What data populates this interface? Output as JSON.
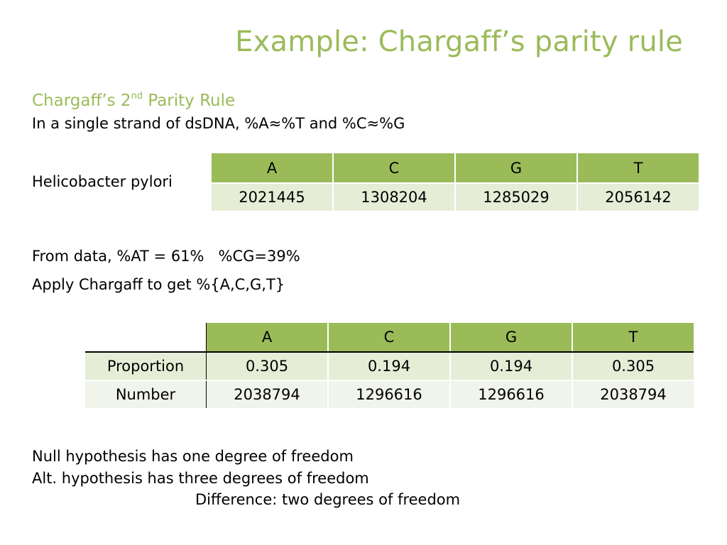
{
  "slide": {
    "title": "Example: Chargaff’s parity rule",
    "subhead_pre": "Chargaff’s 2",
    "subhead_sup": "nd",
    "subhead_post": " Parity Rule",
    "rule_text": "In a single strand of dsDNA, %A≈%T and %C≈%G",
    "organism": "Helicobacter pylori",
    "from_data": "From data, %AT = 61%   %CG=39%",
    "apply": "Apply Chargaff to get %{A,C,G,T}",
    "null_h": "Null hypothesis has one degree of freedom",
    "alt_h": "Alt. hypothesis has three degrees of freedom",
    "difference": "Difference: two degrees of freedom"
  },
  "counts_table": {
    "headers": [
      "A",
      "C",
      "G",
      "T"
    ],
    "values": [
      "2021445",
      "1308204",
      "1285029",
      "2056142"
    ]
  },
  "expected_table": {
    "headers": [
      "A",
      "C",
      "G",
      "T"
    ],
    "rows": [
      {
        "label": "Proportion",
        "values": [
          "0.305",
          "0.194",
          "0.194",
          "0.305"
        ]
      },
      {
        "label": "Number",
        "values": [
          "2038794",
          "1296616",
          "1296616",
          "2038794"
        ]
      }
    ]
  },
  "colors": {
    "accent": "#9bbb59",
    "table_band_1": "#e6edd6",
    "table_band_2": "#f0f4ea"
  }
}
